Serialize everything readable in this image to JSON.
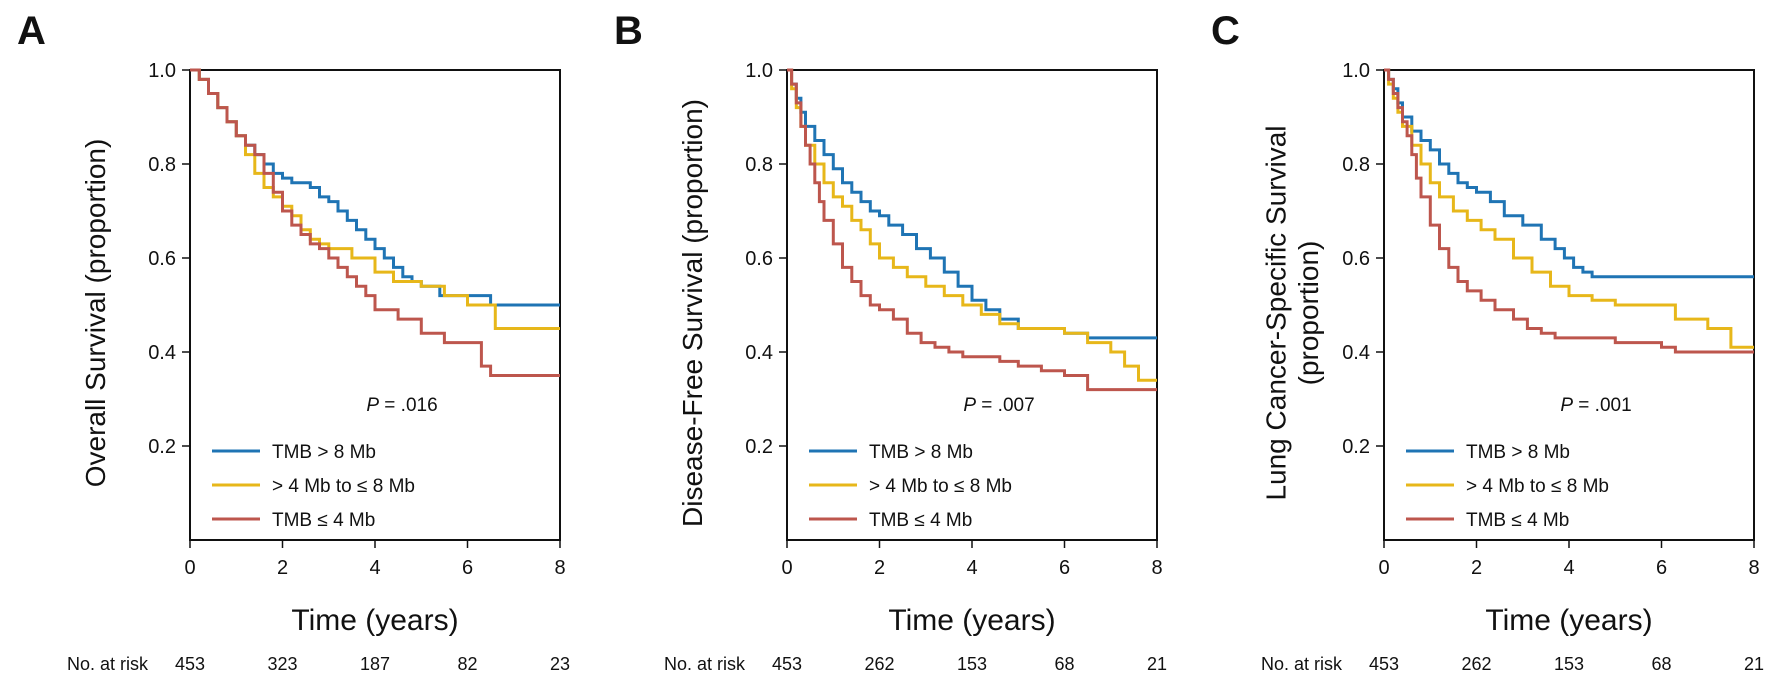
{
  "colors": {
    "high": "#1f74b4",
    "mid": "#e7b71a",
    "low": "#bd564d"
  },
  "chart_data": [
    {
      "type": "line",
      "panel": "A",
      "ylabel": [
        "Overall Survival (proportion)"
      ],
      "xlabel": "Time (years)",
      "xlim": [
        0,
        8
      ],
      "ylim": [
        0,
        1.0
      ],
      "xticks": [
        "0",
        "2",
        "4",
        "6",
        "8"
      ],
      "yticks": [
        "0.2",
        "0.4",
        "0.6",
        "0.8",
        "1.0"
      ],
      "p_prefix": "P",
      "p_value": " = .016",
      "risk_label": "No. at risk",
      "at_risk": [
        "453",
        "323",
        "187",
        "82",
        "23"
      ],
      "series": [
        {
          "name": "TMB > 8 Mb",
          "color_key": "high",
          "x": [
            0,
            0.2,
            0.4,
            0.6,
            0.8,
            1.0,
            1.2,
            1.4,
            1.6,
            1.8,
            2.0,
            2.2,
            2.4,
            2.6,
            2.8,
            3.0,
            3.2,
            3.4,
            3.6,
            3.8,
            4.0,
            4.2,
            4.4,
            4.6,
            4.8,
            5.0,
            5.4,
            6.0,
            6.5,
            8.0
          ],
          "y": [
            1.0,
            0.98,
            0.95,
            0.92,
            0.89,
            0.86,
            0.84,
            0.82,
            0.8,
            0.78,
            0.77,
            0.76,
            0.76,
            0.75,
            0.73,
            0.72,
            0.7,
            0.68,
            0.66,
            0.64,
            0.62,
            0.6,
            0.58,
            0.56,
            0.55,
            0.54,
            0.52,
            0.52,
            0.5,
            0.5
          ]
        },
        {
          "name": "> 4 Mb to ≤ 8 Mb",
          "color_key": "mid",
          "x": [
            0,
            0.2,
            0.4,
            0.6,
            0.8,
            1.0,
            1.2,
            1.4,
            1.6,
            1.8,
            2.0,
            2.2,
            2.4,
            2.6,
            2.8,
            3.0,
            3.5,
            4.0,
            4.4,
            5.0,
            5.5,
            6.0,
            6.6,
            8.0
          ],
          "y": [
            1.0,
            0.98,
            0.95,
            0.92,
            0.89,
            0.86,
            0.82,
            0.78,
            0.75,
            0.73,
            0.71,
            0.69,
            0.66,
            0.64,
            0.63,
            0.62,
            0.6,
            0.57,
            0.55,
            0.54,
            0.52,
            0.5,
            0.45,
            0.45
          ]
        },
        {
          "name": "TMB ≤ 4 Mb",
          "color_key": "low",
          "x": [
            0,
            0.2,
            0.4,
            0.6,
            0.8,
            1.0,
            1.2,
            1.4,
            1.6,
            1.8,
            2.0,
            2.2,
            2.4,
            2.6,
            2.8,
            3.0,
            3.2,
            3.4,
            3.6,
            3.8,
            4.0,
            4.5,
            5.0,
            5.5,
            6.0,
            6.3,
            6.5,
            8.0
          ],
          "y": [
            1.0,
            0.98,
            0.95,
            0.92,
            0.89,
            0.86,
            0.84,
            0.82,
            0.78,
            0.74,
            0.7,
            0.67,
            0.65,
            0.63,
            0.62,
            0.6,
            0.58,
            0.56,
            0.54,
            0.52,
            0.49,
            0.47,
            0.44,
            0.42,
            0.42,
            0.37,
            0.35,
            0.35
          ]
        }
      ]
    },
    {
      "type": "line",
      "panel": "B",
      "ylabel": [
        "Disease-Free Survival (proportion)"
      ],
      "xlabel": "Time (years)",
      "xlim": [
        0,
        8
      ],
      "ylim": [
        0,
        1.0
      ],
      "xticks": [
        "0",
        "2",
        "4",
        "6",
        "8"
      ],
      "yticks": [
        "0.2",
        "0.4",
        "0.6",
        "0.8",
        "1.0"
      ],
      "p_prefix": "P",
      "p_value": " = .007",
      "risk_label": "No. at risk",
      "at_risk": [
        "453",
        "262",
        "153",
        "68",
        "21"
      ],
      "series": [
        {
          "name": "TMB > 8 Mb",
          "color_key": "high",
          "x": [
            0,
            0.1,
            0.2,
            0.3,
            0.4,
            0.6,
            0.8,
            1.0,
            1.2,
            1.4,
            1.6,
            1.8,
            2.0,
            2.2,
            2.5,
            2.8,
            3.1,
            3.4,
            3.7,
            4.0,
            4.3,
            4.6,
            5.0,
            5.5,
            6.0,
            6.5,
            8.0
          ],
          "y": [
            1.0,
            0.97,
            0.94,
            0.91,
            0.88,
            0.85,
            0.82,
            0.79,
            0.76,
            0.74,
            0.72,
            0.7,
            0.69,
            0.67,
            0.65,
            0.62,
            0.6,
            0.57,
            0.54,
            0.51,
            0.49,
            0.47,
            0.45,
            0.45,
            0.44,
            0.43,
            0.43
          ]
        },
        {
          "name": "> 4 Mb to ≤ 8 Mb",
          "color_key": "mid",
          "x": [
            0,
            0.1,
            0.2,
            0.3,
            0.4,
            0.6,
            0.8,
            1.0,
            1.2,
            1.4,
            1.6,
            1.8,
            2.0,
            2.3,
            2.6,
            3.0,
            3.4,
            3.8,
            4.2,
            4.6,
            5.0,
            5.5,
            6.0,
            6.5,
            7.0,
            7.3,
            7.6,
            8.0
          ],
          "y": [
            1.0,
            0.96,
            0.92,
            0.88,
            0.84,
            0.8,
            0.76,
            0.73,
            0.71,
            0.68,
            0.66,
            0.63,
            0.6,
            0.58,
            0.56,
            0.54,
            0.52,
            0.5,
            0.48,
            0.46,
            0.45,
            0.45,
            0.44,
            0.42,
            0.4,
            0.37,
            0.34,
            0.34
          ]
        },
        {
          "name": "TMB ≤ 4 Mb",
          "color_key": "low",
          "x": [
            0,
            0.1,
            0.2,
            0.3,
            0.4,
            0.5,
            0.6,
            0.7,
            0.8,
            1.0,
            1.2,
            1.4,
            1.6,
            1.8,
            2.0,
            2.3,
            2.6,
            2.9,
            3.2,
            3.5,
            3.8,
            4.2,
            4.6,
            5.0,
            5.5,
            6.0,
            6.5,
            8.0
          ],
          "y": [
            1.0,
            0.97,
            0.93,
            0.88,
            0.84,
            0.8,
            0.76,
            0.72,
            0.68,
            0.63,
            0.58,
            0.55,
            0.52,
            0.5,
            0.49,
            0.47,
            0.44,
            0.42,
            0.41,
            0.4,
            0.39,
            0.39,
            0.38,
            0.37,
            0.36,
            0.35,
            0.32,
            0.32
          ]
        }
      ]
    },
    {
      "type": "line",
      "panel": "C",
      "ylabel": [
        "Lung Cancer-Specific Survival",
        "(proportion)"
      ],
      "xlabel": "Time (years)",
      "xlim": [
        0,
        8
      ],
      "ylim": [
        0,
        1.0
      ],
      "xticks": [
        "0",
        "2",
        "4",
        "6",
        "8"
      ],
      "yticks": [
        "0.2",
        "0.4",
        "0.6",
        "0.8",
        "1.0"
      ],
      "p_prefix": "P",
      "p_value": " = .001",
      "risk_label": "No. at risk",
      "at_risk": [
        "453",
        "262",
        "153",
        "68",
        "21"
      ],
      "series": [
        {
          "name": "TMB > 8 Mb",
          "color_key": "high",
          "x": [
            0,
            0.1,
            0.2,
            0.3,
            0.4,
            0.6,
            0.8,
            1.0,
            1.2,
            1.4,
            1.6,
            1.8,
            2.0,
            2.3,
            2.6,
            3.0,
            3.4,
            3.7,
            3.9,
            4.1,
            4.3,
            4.5,
            5.0,
            6.0,
            8.0
          ],
          "y": [
            1.0,
            0.98,
            0.96,
            0.93,
            0.9,
            0.87,
            0.85,
            0.83,
            0.8,
            0.78,
            0.76,
            0.75,
            0.74,
            0.72,
            0.69,
            0.67,
            0.64,
            0.62,
            0.6,
            0.58,
            0.57,
            0.56,
            0.56,
            0.56,
            0.56
          ]
        },
        {
          "name": "> 4 Mb to ≤ 8 Mb",
          "color_key": "mid",
          "x": [
            0,
            0.1,
            0.2,
            0.3,
            0.4,
            0.6,
            0.8,
            1.0,
            1.2,
            1.5,
            1.8,
            2.1,
            2.4,
            2.8,
            3.2,
            3.6,
            4.0,
            4.5,
            5.0,
            6.0,
            6.3,
            7.0,
            7.5,
            8.0
          ],
          "y": [
            1.0,
            0.97,
            0.94,
            0.91,
            0.88,
            0.84,
            0.8,
            0.76,
            0.73,
            0.7,
            0.68,
            0.66,
            0.64,
            0.6,
            0.57,
            0.54,
            0.52,
            0.51,
            0.5,
            0.5,
            0.47,
            0.45,
            0.41,
            0.41
          ]
        },
        {
          "name": "TMB ≤ 4 Mb",
          "color_key": "low",
          "x": [
            0,
            0.1,
            0.2,
            0.3,
            0.4,
            0.5,
            0.6,
            0.7,
            0.8,
            1.0,
            1.2,
            1.4,
            1.6,
            1.8,
            2.1,
            2.4,
            2.8,
            3.1,
            3.4,
            3.7,
            4.0,
            5.0,
            6.0,
            6.3,
            8.0
          ],
          "y": [
            1.0,
            0.98,
            0.95,
            0.92,
            0.89,
            0.86,
            0.82,
            0.77,
            0.73,
            0.67,
            0.62,
            0.58,
            0.55,
            0.53,
            0.51,
            0.49,
            0.47,
            0.45,
            0.44,
            0.43,
            0.43,
            0.42,
            0.41,
            0.4,
            0.4
          ]
        }
      ]
    }
  ]
}
